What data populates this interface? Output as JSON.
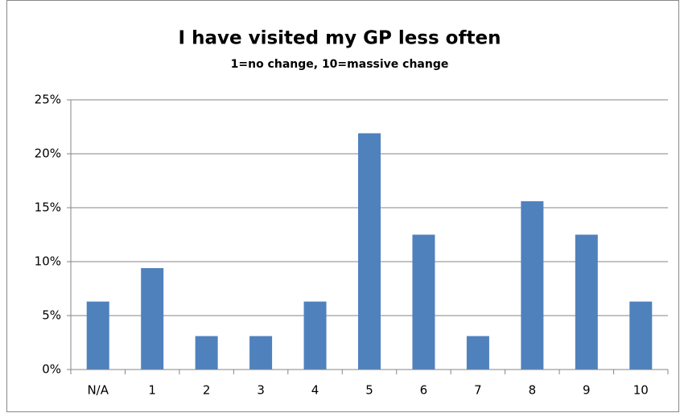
{
  "chart_data": {
    "type": "bar",
    "title": "I have visited my GP less often",
    "subtitle": "1=no change, 10=massive change",
    "categories": [
      "N/A",
      "1",
      "2",
      "3",
      "4",
      "5",
      "6",
      "7",
      "8",
      "9",
      "10"
    ],
    "values": [
      6.3,
      9.4,
      3.1,
      3.1,
      6.3,
      21.9,
      12.5,
      3.1,
      15.6,
      12.5,
      6.3
    ],
    "color": "#4f81bd",
    "ylim": [
      0,
      25
    ],
    "yticks": [
      {
        "value": 0,
        "label": "0%"
      },
      {
        "value": 5,
        "label": "5%"
      },
      {
        "value": 10,
        "label": "10%"
      },
      {
        "value": 15,
        "label": "15%"
      },
      {
        "value": 20,
        "label": "20%"
      },
      {
        "value": 25,
        "label": "25%"
      }
    ],
    "grid": true
  }
}
